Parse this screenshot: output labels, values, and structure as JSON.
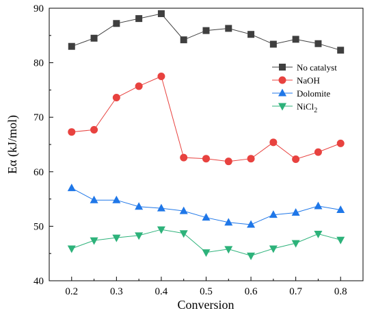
{
  "chart_data": {
    "type": "line",
    "title": "",
    "xlabel": "Conversion",
    "ylabel": "Eα (kJ/mol)",
    "xlim": [
      0.15,
      0.85
    ],
    "ylim": [
      40,
      90
    ],
    "xticks": [
      0.2,
      0.3,
      0.4,
      0.5,
      0.6,
      0.7,
      0.8
    ],
    "xtick_labels": [
      "0.2",
      "0.3",
      "0.4",
      "0.5",
      "0.6",
      "0.7",
      "0.8"
    ],
    "yticks": [
      40,
      50,
      60,
      70,
      80,
      90
    ],
    "ytick_labels": [
      "40",
      "50",
      "60",
      "70",
      "80",
      "90"
    ],
    "grid": false,
    "legend_position": "upper-right",
    "x": [
      0.2,
      0.25,
      0.3,
      0.35,
      0.4,
      0.45,
      0.5,
      0.55,
      0.6,
      0.65,
      0.7,
      0.75,
      0.8
    ],
    "series": [
      {
        "name": "No catalyst",
        "marker": "square",
        "color": "#3f3f3f",
        "values": [
          83.0,
          84.5,
          87.2,
          88.1,
          89.0,
          84.2,
          85.9,
          86.3,
          85.2,
          83.4,
          84.3,
          83.5,
          82.3
        ]
      },
      {
        "name": "NaOH",
        "marker": "circle",
        "color": "#e8423f",
        "values": [
          67.3,
          67.7,
          73.6,
          75.7,
          77.5,
          62.6,
          62.4,
          61.9,
          62.4,
          65.4,
          62.3,
          63.6,
          65.2
        ]
      },
      {
        "name": "Dolomite",
        "marker": "triangle-up",
        "color": "#1f77e8",
        "values": [
          57.0,
          54.8,
          54.8,
          53.6,
          53.3,
          52.8,
          51.6,
          50.7,
          50.3,
          52.1,
          52.5,
          53.7,
          53.0
        ]
      },
      {
        "name": "NiCl",
        "name_sub": "2",
        "marker": "triangle-down",
        "color": "#2db27a",
        "values": [
          45.9,
          47.4,
          47.9,
          48.3,
          49.4,
          48.7,
          45.2,
          45.8,
          44.6,
          45.9,
          46.9,
          48.6,
          47.5
        ]
      }
    ]
  }
}
